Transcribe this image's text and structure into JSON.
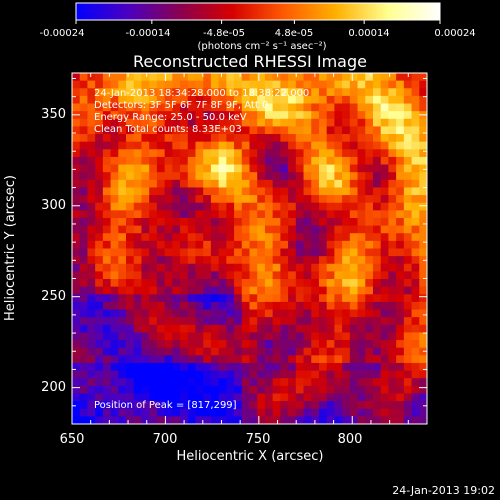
{
  "colorbar": {
    "tick_labels": [
      "-0.00024",
      "-0.00014",
      "-4.8e-05",
      "4.8e-05",
      "0.00014",
      "0.00024"
    ],
    "tick_values": [
      -0.00024,
      -0.00014,
      -4.8e-05,
      4.8e-05,
      0.00014,
      0.00024
    ],
    "range": [
      -0.00024,
      0.00024
    ],
    "units_label": "(photons cm⁻² s⁻¹ asec⁻²)",
    "colors": [
      "#0000ff",
      "#4b00c0",
      "#8a0050",
      "#d60000",
      "#ff5a00",
      "#ffb000",
      "#ffff90",
      "#ffffff"
    ]
  },
  "chart_data": {
    "type": "heatmap",
    "title": "Reconstructed RHESSI Image",
    "xlabel": "Heliocentric X (arcsec)",
    "ylabel": "Heliocentric Y (arcsec)",
    "xlim": [
      650,
      840
    ],
    "ylim": [
      180,
      373
    ],
    "x_ticks": [
      650,
      700,
      750,
      800
    ],
    "y_ticks": [
      200,
      250,
      300,
      350
    ],
    "info_lines": [
      "24-Jan-2013 18:34:28.000 to 18:38:22.000",
      "Detectors: 3F 5F 6F 7F 8F 9F, Att 0",
      "Energy Range: 25.0 - 50.0 keV",
      "Clean    Total counts: 8.33E+03"
    ],
    "peak_label": "Position of Peak = [817,299]",
    "peak_position": [
      817,
      299
    ],
    "total_counts": "8.33E+03",
    "energy_range_keV": [
      25.0,
      50.0
    ],
    "grid_size": 46
  },
  "footer": {
    "timestamp": "24-Jan-2013 19:02"
  }
}
